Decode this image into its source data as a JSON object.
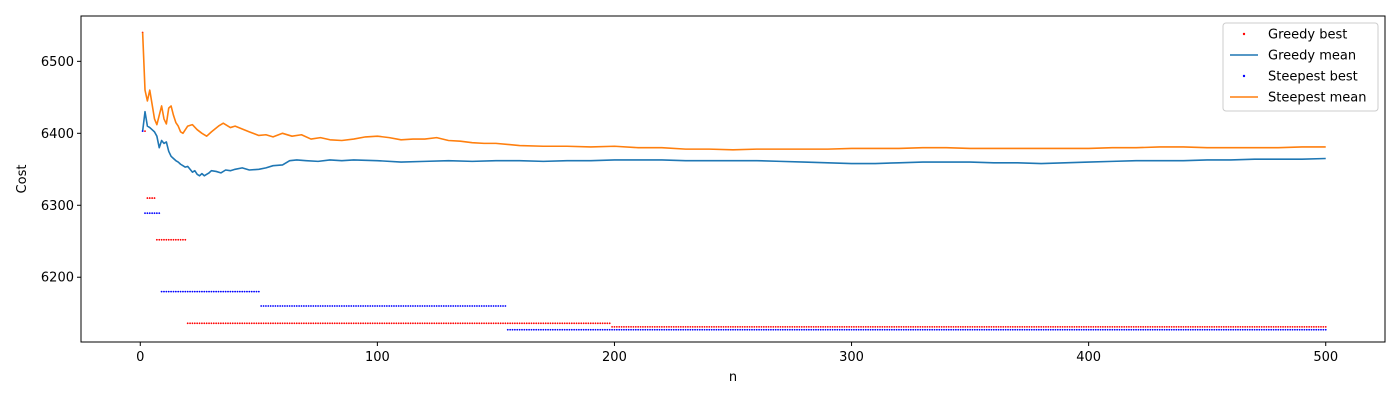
{
  "chart_data": {
    "type": "line",
    "xlabel": "n",
    "ylabel": "Cost",
    "xlim": [
      -25,
      525
    ],
    "ylim": [
      6110,
      6563
    ],
    "xticks": [
      0,
      100,
      200,
      300,
      400,
      500
    ],
    "yticks": [
      6200,
      6300,
      6400,
      6500
    ],
    "grid": false,
    "legend_position": "top-right",
    "series": [
      {
        "name": "Greedy best",
        "style": "points",
        "color": "#ff0000",
        "steps": [
          {
            "from": 1,
            "to": 1,
            "value": 6540
          },
          {
            "from": 2,
            "to": 2,
            "value": 6403
          },
          {
            "from": 3,
            "to": 6,
            "value": 6310
          },
          {
            "from": 7,
            "to": 19,
            "value": 6252
          },
          {
            "from": 20,
            "to": 198,
            "value": 6136
          },
          {
            "from": 199,
            "to": 500,
            "value": 6131
          }
        ]
      },
      {
        "name": "Greedy mean",
        "style": "line",
        "color": "#1f77b4",
        "points": [
          [
            1,
            6403
          ],
          [
            2,
            6430
          ],
          [
            3,
            6410
          ],
          [
            4,
            6408
          ],
          [
            5,
            6405
          ],
          [
            6,
            6402
          ],
          [
            7,
            6396
          ],
          [
            8,
            6380
          ],
          [
            9,
            6390
          ],
          [
            10,
            6386
          ],
          [
            11,
            6388
          ],
          [
            12,
            6375
          ],
          [
            13,
            6368
          ],
          [
            14,
            6365
          ],
          [
            15,
            6362
          ],
          [
            16,
            6360
          ],
          [
            17,
            6357
          ],
          [
            18,
            6355
          ],
          [
            19,
            6353
          ],
          [
            20,
            6354
          ],
          [
            21,
            6350
          ],
          [
            22,
            6346
          ],
          [
            23,
            6348
          ],
          [
            24,
            6343
          ],
          [
            25,
            6341
          ],
          [
            26,
            6344
          ],
          [
            27,
            6341
          ],
          [
            28,
            6343
          ],
          [
            29,
            6345
          ],
          [
            30,
            6348
          ],
          [
            32,
            6347
          ],
          [
            34,
            6345
          ],
          [
            36,
            6349
          ],
          [
            38,
            6348
          ],
          [
            40,
            6350
          ],
          [
            43,
            6352
          ],
          [
            46,
            6349
          ],
          [
            50,
            6350
          ],
          [
            53,
            6352
          ],
          [
            56,
            6355
          ],
          [
            60,
            6356
          ],
          [
            63,
            6362
          ],
          [
            66,
            6363
          ],
          [
            70,
            6362
          ],
          [
            75,
            6361
          ],
          [
            80,
            6363
          ],
          [
            85,
            6362
          ],
          [
            90,
            6363
          ],
          [
            100,
            6362
          ],
          [
            110,
            6360
          ],
          [
            120,
            6361
          ],
          [
            130,
            6362
          ],
          [
            140,
            6361
          ],
          [
            150,
            6362
          ],
          [
            160,
            6362
          ],
          [
            170,
            6361
          ],
          [
            180,
            6362
          ],
          [
            190,
            6362
          ],
          [
            200,
            6363
          ],
          [
            210,
            6363
          ],
          [
            220,
            6363
          ],
          [
            230,
            6362
          ],
          [
            240,
            6362
          ],
          [
            250,
            6362
          ],
          [
            260,
            6362
          ],
          [
            270,
            6361
          ],
          [
            280,
            6360
          ],
          [
            290,
            6359
          ],
          [
            300,
            6358
          ],
          [
            310,
            6358
          ],
          [
            320,
            6359
          ],
          [
            330,
            6360
          ],
          [
            340,
            6360
          ],
          [
            350,
            6360
          ],
          [
            360,
            6359
          ],
          [
            370,
            6359
          ],
          [
            380,
            6358
          ],
          [
            390,
            6359
          ],
          [
            400,
            6360
          ],
          [
            410,
            6361
          ],
          [
            420,
            6362
          ],
          [
            430,
            6362
          ],
          [
            440,
            6362
          ],
          [
            450,
            6363
          ],
          [
            460,
            6363
          ],
          [
            470,
            6364
          ],
          [
            480,
            6364
          ],
          [
            490,
            6364
          ],
          [
            500,
            6365
          ]
        ]
      },
      {
        "name": "Steepest best",
        "style": "points",
        "color": "#0000ff",
        "steps": [
          {
            "from": 1,
            "to": 1,
            "value": 6403
          },
          {
            "from": 2,
            "to": 8,
            "value": 6289
          },
          {
            "from": 9,
            "to": 50,
            "value": 6180
          },
          {
            "from": 51,
            "to": 154,
            "value": 6160
          },
          {
            "from": 155,
            "to": 200,
            "value": 6127
          },
          {
            "from": 201,
            "to": 500,
            "value": 6127
          }
        ]
      },
      {
        "name": "Steepest mean",
        "style": "line",
        "color": "#ff7f0e",
        "points": [
          [
            1,
            6540
          ],
          [
            2,
            6460
          ],
          [
            3,
            6445
          ],
          [
            4,
            6460
          ],
          [
            5,
            6440
          ],
          [
            6,
            6420
          ],
          [
            7,
            6412
          ],
          [
            8,
            6425
          ],
          [
            9,
            6438
          ],
          [
            10,
            6420
          ],
          [
            11,
            6413
          ],
          [
            12,
            6435
          ],
          [
            13,
            6438
          ],
          [
            14,
            6425
          ],
          [
            15,
            6415
          ],
          [
            16,
            6410
          ],
          [
            17,
            6402
          ],
          [
            18,
            6400
          ],
          [
            19,
            6405
          ],
          [
            20,
            6410
          ],
          [
            22,
            6412
          ],
          [
            24,
            6405
          ],
          [
            26,
            6400
          ],
          [
            28,
            6396
          ],
          [
            30,
            6402
          ],
          [
            33,
            6410
          ],
          [
            35,
            6414
          ],
          [
            38,
            6408
          ],
          [
            40,
            6410
          ],
          [
            43,
            6406
          ],
          [
            46,
            6402
          ],
          [
            50,
            6397
          ],
          [
            53,
            6398
          ],
          [
            56,
            6395
          ],
          [
            60,
            6400
          ],
          [
            64,
            6396
          ],
          [
            68,
            6398
          ],
          [
            72,
            6392
          ],
          [
            76,
            6394
          ],
          [
            80,
            6391
          ],
          [
            85,
            6390
          ],
          [
            90,
            6392
          ],
          [
            95,
            6395
          ],
          [
            100,
            6396
          ],
          [
            105,
            6394
          ],
          [
            110,
            6391
          ],
          [
            115,
            6392
          ],
          [
            120,
            6392
          ],
          [
            125,
            6394
          ],
          [
            130,
            6390
          ],
          [
            135,
            6389
          ],
          [
            140,
            6387
          ],
          [
            145,
            6386
          ],
          [
            150,
            6386
          ],
          [
            160,
            6383
          ],
          [
            170,
            6382
          ],
          [
            180,
            6382
          ],
          [
            190,
            6381
          ],
          [
            200,
            6382
          ],
          [
            210,
            6380
          ],
          [
            220,
            6380
          ],
          [
            230,
            6378
          ],
          [
            240,
            6378
          ],
          [
            250,
            6377
          ],
          [
            260,
            6378
          ],
          [
            270,
            6378
          ],
          [
            280,
            6378
          ],
          [
            290,
            6378
          ],
          [
            300,
            6379
          ],
          [
            310,
            6379
          ],
          [
            320,
            6379
          ],
          [
            330,
            6380
          ],
          [
            340,
            6380
          ],
          [
            350,
            6379
          ],
          [
            360,
            6379
          ],
          [
            370,
            6379
          ],
          [
            380,
            6379
          ],
          [
            390,
            6379
          ],
          [
            400,
            6379
          ],
          [
            410,
            6380
          ],
          [
            420,
            6380
          ],
          [
            430,
            6381
          ],
          [
            440,
            6381
          ],
          [
            450,
            6380
          ],
          [
            460,
            6380
          ],
          [
            470,
            6380
          ],
          [
            480,
            6380
          ],
          [
            490,
            6381
          ],
          [
            500,
            6381
          ]
        ]
      }
    ]
  }
}
